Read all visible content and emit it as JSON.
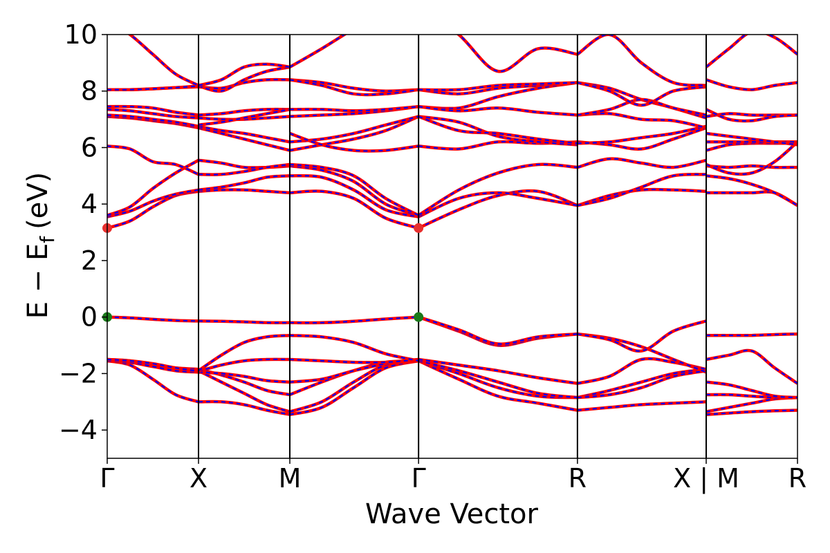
{
  "chart_data": {
    "type": "line",
    "title": "",
    "xlabel": "Wave Vector",
    "ylabel": "E − E_f (eV)",
    "ylabel_parts": {
      "main": "E − E",
      "sub": "f",
      "unit": "(eV)"
    },
    "ylim": [
      -5,
      10
    ],
    "yticks": [
      -4,
      -2,
      0,
      2,
      4,
      6,
      8,
      10
    ],
    "ytick_labels": [
      "−4",
      "−2",
      "0",
      "2",
      "4",
      "6",
      "8",
      "10"
    ],
    "xlim": [
      0,
      7.56
    ],
    "kpoints": [
      {
        "label": "Γ",
        "x": 0
      },
      {
        "label": "X",
        "x": 1.0
      },
      {
        "label": "M",
        "x": 2.0
      },
      {
        "label": "Γ",
        "x": 3.41
      },
      {
        "label": "R",
        "x": 5.15
      },
      {
        "label": "X | M",
        "x": 6.56
      },
      {
        "label": "R",
        "x": 7.56
      }
    ],
    "grid": false,
    "legend": "none",
    "colors": {
      "band_solid": "#ff0000",
      "band_dashed": "#0000ff",
      "cbm_marker": "#e8302e",
      "vbm_marker": "#1a7a1a"
    },
    "markers": [
      {
        "name": "cbm",
        "x": 0,
        "y": 3.15,
        "color": "#e8302e"
      },
      {
        "name": "cbm",
        "x": 3.41,
        "y": 3.15,
        "color": "#e8302e"
      },
      {
        "name": "vbm",
        "x": 0,
        "y": 0.0,
        "color": "#1a7a1a"
      },
      {
        "name": "vbm",
        "x": 3.41,
        "y": 0.0,
        "color": "#1a7a1a"
      }
    ],
    "segments": [
      {
        "name": "Γ-X",
        "x": [
          0,
          0.25,
          0.5,
          0.75,
          1.0
        ],
        "bands": [
          [
            -1.55,
            -1.7,
            -2.2,
            -2.75,
            -3.0
          ],
          [
            -1.55,
            -1.6,
            -1.75,
            -1.85,
            -1.9
          ],
          [
            -1.5,
            -1.55,
            -1.7,
            -1.8,
            -1.85
          ],
          [
            -1.55,
            -1.6,
            -1.75,
            -1.9,
            -1.95
          ],
          [
            -1.5,
            -1.55,
            -1.65,
            -1.8,
            -1.92
          ],
          [
            0.0,
            -0.03,
            -0.08,
            -0.12,
            -0.14
          ],
          [
            3.15,
            3.4,
            3.9,
            4.3,
            4.45
          ],
          [
            3.55,
            3.75,
            4.1,
            4.35,
            4.5
          ],
          [
            3.6,
            3.9,
            4.55,
            5.1,
            5.55
          ],
          [
            6.05,
            5.95,
            5.5,
            5.4,
            5.05
          ],
          [
            7.1,
            7.05,
            6.95,
            6.85,
            6.7
          ],
          [
            7.15,
            7.1,
            7.0,
            6.9,
            6.75
          ],
          [
            7.35,
            7.3,
            7.2,
            7.1,
            7.05
          ],
          [
            7.45,
            7.45,
            7.4,
            7.25,
            7.15
          ],
          [
            8.05,
            8.05,
            8.08,
            8.12,
            8.15
          ],
          [
            8.05,
            8.05,
            8.08,
            8.12,
            8.18
          ],
          [
            10.5,
            10.0,
            9.3,
            8.6,
            8.2
          ]
        ]
      },
      {
        "name": "X-M",
        "x": [
          1.0,
          1.25,
          1.5,
          1.75,
          2.0
        ],
        "bands": [
          [
            -3.0,
            -3.0,
            -3.1,
            -3.3,
            -3.45
          ],
          [
            -1.9,
            -2.3,
            -2.7,
            -3.1,
            -3.35
          ],
          [
            -1.85,
            -2.05,
            -2.3,
            -2.6,
            -2.75
          ],
          [
            -1.95,
            -2.0,
            -2.1,
            -2.25,
            -2.3
          ],
          [
            -1.92,
            -1.7,
            -1.55,
            -1.5,
            -1.5
          ],
          [
            -1.9,
            -1.35,
            -0.9,
            -0.7,
            -0.65
          ],
          [
            -0.14,
            -0.15,
            -0.17,
            -0.2,
            -0.2
          ],
          [
            4.45,
            4.5,
            4.5,
            4.45,
            4.4
          ],
          [
            4.5,
            4.6,
            4.75,
            4.95,
            5.0
          ],
          [
            5.55,
            5.45,
            5.3,
            5.3,
            5.35
          ],
          [
            5.05,
            5.05,
            5.15,
            5.3,
            5.4
          ],
          [
            6.7,
            6.5,
            6.3,
            6.1,
            5.9
          ],
          [
            6.75,
            6.6,
            6.5,
            6.35,
            6.2
          ],
          [
            7.05,
            7.0,
            7.0,
            7.05,
            7.1
          ],
          [
            7.15,
            7.2,
            7.3,
            7.35,
            7.35
          ],
          [
            6.8,
            6.9,
            7.05,
            7.2,
            7.35
          ],
          [
            8.15,
            8.1,
            8.3,
            8.4,
            8.4
          ],
          [
            8.18,
            8.0,
            8.4,
            8.7,
            8.85
          ],
          [
            8.2,
            8.4,
            8.85,
            8.95,
            8.85
          ]
        ]
      },
      {
        "name": "M-Γ",
        "x": [
          2.0,
          2.35,
          2.7,
          3.05,
          3.41
        ],
        "bands": [
          [
            -3.45,
            -3.2,
            -2.5,
            -1.8,
            -1.55
          ],
          [
            -3.35,
            -3.0,
            -2.3,
            -1.7,
            -1.55
          ],
          [
            -2.75,
            -2.3,
            -1.9,
            -1.6,
            -1.55
          ],
          [
            -2.3,
            -2.2,
            -1.9,
            -1.65,
            -1.5
          ],
          [
            -1.5,
            -1.55,
            -1.6,
            -1.6,
            -1.5
          ],
          [
            -0.65,
            -0.7,
            -0.9,
            -1.3,
            -1.55
          ],
          [
            -0.2,
            -0.2,
            -0.15,
            -0.07,
            0.0
          ],
          [
            4.4,
            4.45,
            4.2,
            3.5,
            3.15
          ],
          [
            5.0,
            4.95,
            4.5,
            3.8,
            3.55
          ],
          [
            5.35,
            5.2,
            4.8,
            4.0,
            3.6
          ],
          [
            5.4,
            5.3,
            5.0,
            4.2,
            3.6
          ],
          [
            5.9,
            6.1,
            6.3,
            6.6,
            7.1
          ],
          [
            6.2,
            6.3,
            6.5,
            6.8,
            7.1
          ],
          [
            6.5,
            6.1,
            5.9,
            5.9,
            6.05
          ],
          [
            7.1,
            7.15,
            7.2,
            7.3,
            7.45
          ],
          [
            7.35,
            7.35,
            7.3,
            7.35,
            7.45
          ],
          [
            8.4,
            8.3,
            8.1,
            8.0,
            8.05
          ],
          [
            8.4,
            8.2,
            7.9,
            7.9,
            8.05
          ],
          [
            8.85,
            9.5,
            10.2,
            10.8,
            11.0
          ]
        ]
      },
      {
        "name": "Γ-R",
        "x": [
          3.41,
          3.85,
          4.28,
          4.72,
          5.15
        ],
        "bands": [
          [
            -1.55,
            -2.2,
            -2.8,
            -3.05,
            -3.3
          ],
          [
            -1.55,
            -2.0,
            -2.5,
            -2.8,
            -2.85
          ],
          [
            -1.55,
            -1.9,
            -2.3,
            -2.7,
            -2.85
          ],
          [
            -1.5,
            -1.7,
            -1.9,
            -2.15,
            -2.35
          ],
          [
            0.0,
            -0.5,
            -1.0,
            -0.75,
            -0.6
          ],
          [
            0.0,
            -0.45,
            -0.95,
            -0.7,
            -0.6
          ],
          [
            3.15,
            3.8,
            4.3,
            4.45,
            3.95
          ],
          [
            3.55,
            4.2,
            4.4,
            4.2,
            3.95
          ],
          [
            3.6,
            4.5,
            5.1,
            5.4,
            5.3
          ],
          [
            6.05,
            5.95,
            6.2,
            6.15,
            6.2
          ],
          [
            7.1,
            6.9,
            6.4,
            6.2,
            6.1
          ],
          [
            7.1,
            6.6,
            6.5,
            6.3,
            6.15
          ],
          [
            7.45,
            7.4,
            7.8,
            8.1,
            8.3
          ],
          [
            7.45,
            7.3,
            7.4,
            7.25,
            7.15
          ],
          [
            8.05,
            7.9,
            8.1,
            8.2,
            8.3
          ],
          [
            8.05,
            8.05,
            8.2,
            8.25,
            8.3
          ],
          [
            11.0,
            10.0,
            8.7,
            9.5,
            9.3
          ]
        ]
      },
      {
        "name": "R-X",
        "x": [
          5.15,
          5.5,
          5.85,
          6.2,
          6.56
        ],
        "bands": [
          [
            -3.3,
            -3.2,
            -3.1,
            -3.05,
            -3.0
          ],
          [
            -2.85,
            -2.6,
            -2.3,
            -2.0,
            -1.85
          ],
          [
            -2.85,
            -2.75,
            -2.5,
            -2.1,
            -1.9
          ],
          [
            -2.35,
            -2.1,
            -1.5,
            -1.6,
            -1.85
          ],
          [
            -0.6,
            -0.75,
            -1.05,
            -1.5,
            -1.95
          ],
          [
            -0.6,
            -0.8,
            -1.2,
            -0.5,
            -0.14
          ],
          [
            3.95,
            4.3,
            4.5,
            4.5,
            4.45
          ],
          [
            3.95,
            4.2,
            4.6,
            5.0,
            5.05
          ],
          [
            5.3,
            5.6,
            5.45,
            5.3,
            5.55
          ],
          [
            6.2,
            6.1,
            5.95,
            6.3,
            6.7
          ],
          [
            6.15,
            6.2,
            6.35,
            6.5,
            6.75
          ],
          [
            7.15,
            7.2,
            7.0,
            6.95,
            6.7
          ],
          [
            8.3,
            8.1,
            7.7,
            7.4,
            7.05
          ],
          [
            7.15,
            7.35,
            7.7,
            7.4,
            7.15
          ],
          [
            8.3,
            8.0,
            7.5,
            8.0,
            8.15
          ],
          [
            9.3,
            10.0,
            9.0,
            8.3,
            8.2
          ]
        ]
      },
      {
        "name": "M-R",
        "x": [
          6.56,
          6.81,
          7.06,
          7.31,
          7.56
        ],
        "bands": [
          [
            -3.45,
            -3.4,
            -3.35,
            -3.32,
            -3.3
          ],
          [
            -3.35,
            -3.2,
            -3.05,
            -2.9,
            -2.85
          ],
          [
            -2.75,
            -2.75,
            -2.8,
            -2.85,
            -2.85
          ],
          [
            -2.3,
            -2.4,
            -2.6,
            -2.8,
            -2.85
          ],
          [
            -1.5,
            -1.35,
            -1.2,
            -1.8,
            -2.35
          ],
          [
            -0.65,
            -0.65,
            -0.65,
            -0.62,
            -0.6
          ],
          [
            4.4,
            4.4,
            4.4,
            4.4,
            3.95
          ],
          [
            5.0,
            4.9,
            4.7,
            4.4,
            3.95
          ],
          [
            5.35,
            5.3,
            5.35,
            5.3,
            5.3
          ],
          [
            5.4,
            5.1,
            5.1,
            5.5,
            6.2
          ],
          [
            5.9,
            6.1,
            6.15,
            6.15,
            6.15
          ],
          [
            6.2,
            6.2,
            6.2,
            6.2,
            6.2
          ],
          [
            6.5,
            6.4,
            6.3,
            6.2,
            6.1
          ],
          [
            7.1,
            7.2,
            7.15,
            7.15,
            7.15
          ],
          [
            7.35,
            7.0,
            6.95,
            7.1,
            7.15
          ],
          [
            8.4,
            8.15,
            8.05,
            8.2,
            8.3
          ],
          [
            8.85,
            9.5,
            10.1,
            9.9,
            9.3
          ]
        ]
      }
    ]
  }
}
